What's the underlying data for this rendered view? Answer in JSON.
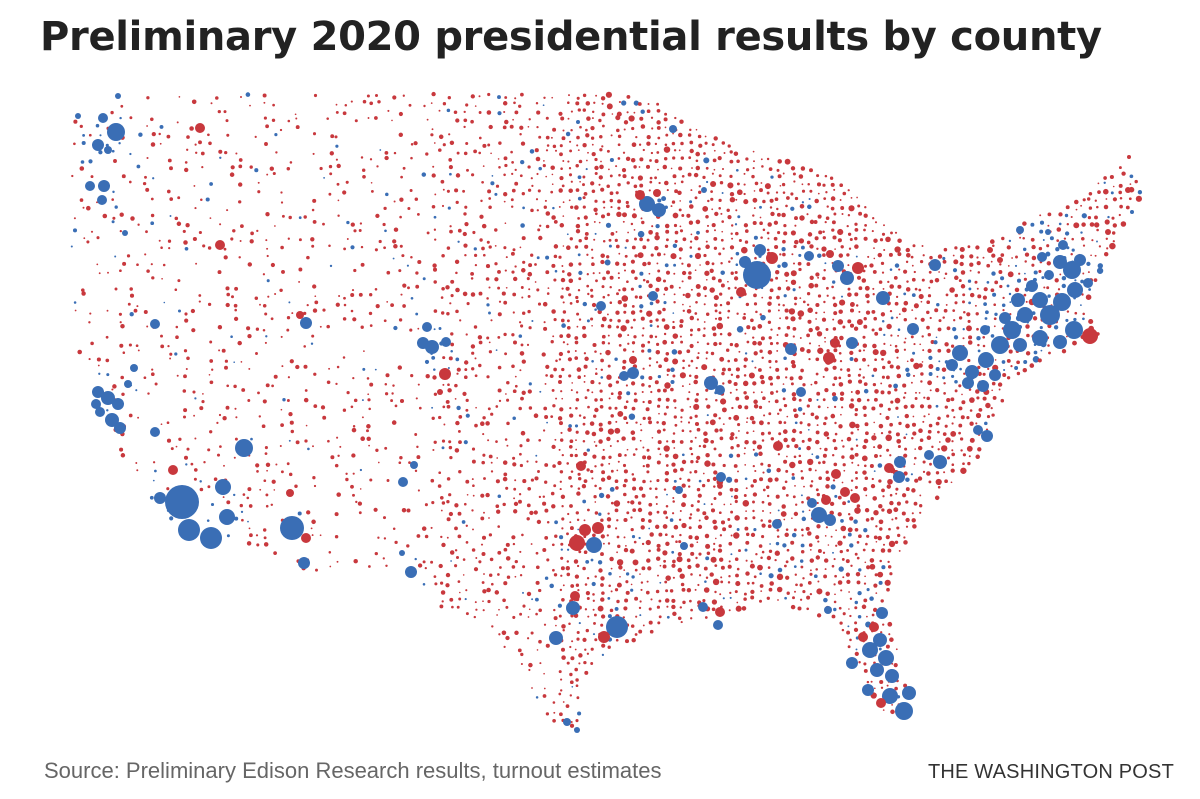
{
  "header": {
    "title": "Preliminary 2020 presidential results by county"
  },
  "footer": {
    "source": "Source: Preliminary Edison Research results, turnout estimates",
    "credit": "THE WASHINGTON POST"
  },
  "map": {
    "type": "proportional-symbol county map",
    "colors": {
      "republican": "#c8383d",
      "democrat": "#3a6eb5"
    }
  }
}
